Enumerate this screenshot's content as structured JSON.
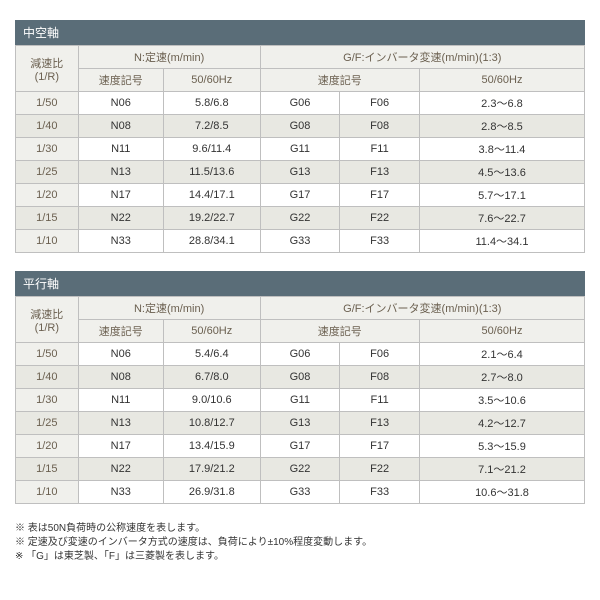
{
  "sections": [
    {
      "title": "中空軸",
      "h_ratio": "減速比\n(1/R)",
      "h_nset": "N:定速(m/min)",
      "h_gf": "G/F:インバータ変速(m/min)(1:3)",
      "h_speed_mark": "速度記号",
      "h_5060": "50/60Hz",
      "rows": [
        {
          "r": "1/50",
          "n": "N06",
          "nv": "5.8/6.8",
          "g": "G06",
          "f": "F06",
          "gfv": "2.3～6.8"
        },
        {
          "r": "1/40",
          "n": "N08",
          "nv": "7.2/8.5",
          "g": "G08",
          "f": "F08",
          "gfv": "2.8～8.5"
        },
        {
          "r": "1/30",
          "n": "N11",
          "nv": "9.6/11.4",
          "g": "G11",
          "f": "F11",
          "gfv": "3.8～11.4"
        },
        {
          "r": "1/25",
          "n": "N13",
          "nv": "11.5/13.6",
          "g": "G13",
          "f": "F13",
          "gfv": "4.5～13.6"
        },
        {
          "r": "1/20",
          "n": "N17",
          "nv": "14.4/17.1",
          "g": "G17",
          "f": "F17",
          "gfv": "5.7～17.1"
        },
        {
          "r": "1/15",
          "n": "N22",
          "nv": "19.2/22.7",
          "g": "G22",
          "f": "F22",
          "gfv": "7.6～22.7"
        },
        {
          "r": "1/10",
          "n": "N33",
          "nv": "28.8/34.1",
          "g": "G33",
          "f": "F33",
          "gfv": "11.4～34.1"
        }
      ]
    },
    {
      "title": "平行軸",
      "h_ratio": "減速比\n(1/R)",
      "h_nset": "N:定速(m/min)",
      "h_gf": "G/F:インバータ変速(m/min)(1:3)",
      "h_speed_mark": "速度記号",
      "h_5060": "50/60Hz",
      "rows": [
        {
          "r": "1/50",
          "n": "N06",
          "nv": "5.4/6.4",
          "g": "G06",
          "f": "F06",
          "gfv": "2.1～6.4"
        },
        {
          "r": "1/40",
          "n": "N08",
          "nv": "6.7/8.0",
          "g": "G08",
          "f": "F08",
          "gfv": "2.7～8.0"
        },
        {
          "r": "1/30",
          "n": "N11",
          "nv": "9.0/10.6",
          "g": "G11",
          "f": "F11",
          "gfv": "3.5～10.6"
        },
        {
          "r": "1/25",
          "n": "N13",
          "nv": "10.8/12.7",
          "g": "G13",
          "f": "F13",
          "gfv": "4.2～12.7"
        },
        {
          "r": "1/20",
          "n": "N17",
          "nv": "13.4/15.9",
          "g": "G17",
          "f": "F17",
          "gfv": "5.3～15.9"
        },
        {
          "r": "1/15",
          "n": "N22",
          "nv": "17.9/21.2",
          "g": "G22",
          "f": "F22",
          "gfv": "7.1～21.2"
        },
        {
          "r": "1/10",
          "n": "N33",
          "nv": "26.9/31.8",
          "g": "G33",
          "f": "F33",
          "gfv": "10.6～31.8"
        }
      ]
    }
  ],
  "notes": [
    "※ 表は50N負荷時の公称速度を表します。",
    "※ 定速及び変速のインバータ方式の速度は、負荷により±10%程度変動します。",
    "※ 「G」は東芝製、「F」は三菱製を表します。"
  ],
  "colors": {
    "section_bg": "#5a6d78",
    "header_bg": "#f0f0ec",
    "alt_row_bg": "#e8e8e2",
    "border": "#bfbfbf",
    "header_text": "#6b6050"
  }
}
